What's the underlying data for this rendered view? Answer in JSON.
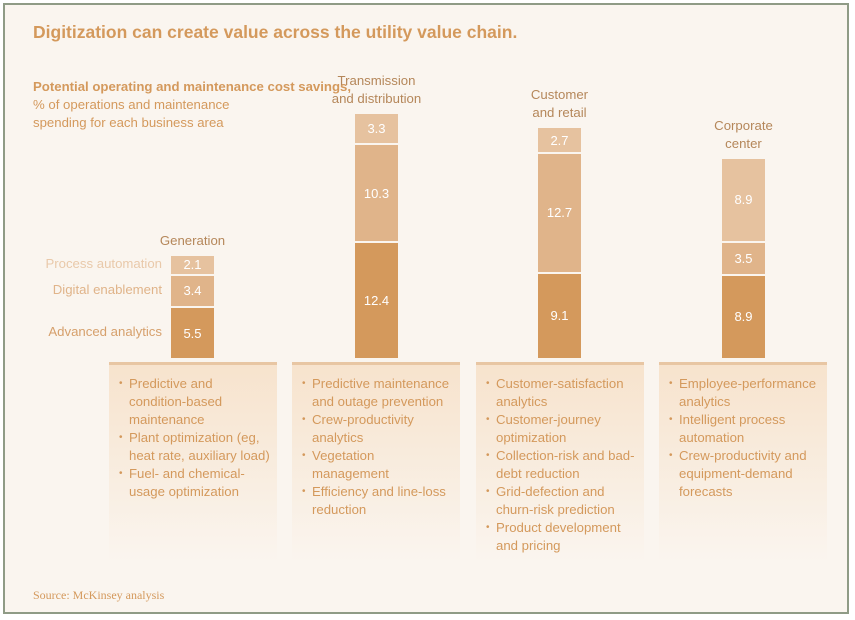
{
  "chart_data": {
    "type": "bar",
    "stacked": true,
    "title": "Digitization can create value across the utility value chain.",
    "subtitle_bold": "Potential operating and maintenance cost savings,",
    "subtitle": "% of operations and maintenance spending for each business area",
    "categories": [
      "Generation",
      "Transmission and distribution",
      "Customer and retail",
      "Corporate center"
    ],
    "series": [
      {
        "name": "Advanced analytics",
        "values": [
          5.5,
          12.4,
          9.1,
          8.9
        ],
        "color": "#d4995c",
        "label_color": "#d6a06c"
      },
      {
        "name": "Digital enablement",
        "values": [
          3.4,
          10.3,
          12.7,
          3.5
        ],
        "color": "#e0b48a",
        "label_color": "#e0b48a"
      },
      {
        "name": "Process automation",
        "values": [
          2.1,
          3.3,
          2.7,
          8.9
        ],
        "color": "#e6c29f",
        "label_color": "#e9c9aa"
      }
    ],
    "levers": [
      [
        "Predictive and condition-based maintenance",
        "Plant optimization (eg, heat rate, auxiliary load)",
        "Fuel- and chemical-usage optimization"
      ],
      [
        "Predictive maintenance and outage prevention",
        "Crew-productivity analytics",
        "Vegetation management",
        "Efficiency and line-loss reduction"
      ],
      [
        "Customer-satisfaction analytics",
        "Customer-journey optimization",
        "Collection-risk and bad-debt reduction",
        "Grid-defection and churn-risk prediction",
        "Product development and pricing"
      ],
      [
        "Employee-performance analytics",
        "Intelligent process automation",
        "Crew-productivity and equipment-demand forecasts"
      ]
    ],
    "source": "Source: McKinsey analysis"
  }
}
